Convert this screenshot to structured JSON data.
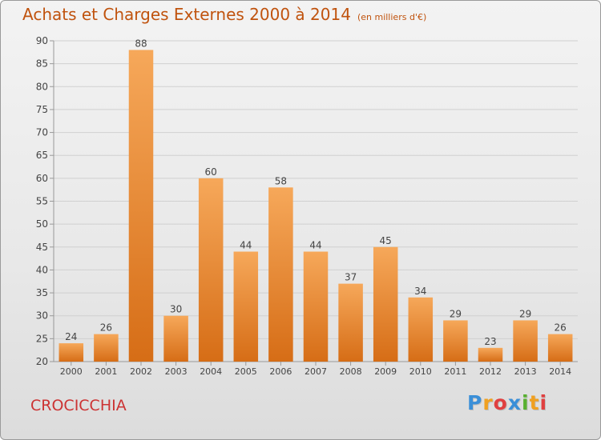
{
  "chart_data": {
    "type": "bar",
    "title": "Achats et Charges Externes 2000 à 2014",
    "subtitle": "(en milliers d'€)",
    "categories": [
      "2000",
      "2001",
      "2002",
      "2003",
      "2004",
      "2005",
      "2006",
      "2007",
      "2008",
      "2009",
      "2010",
      "2011",
      "2012",
      "2013",
      "2014"
    ],
    "values": [
      24,
      26,
      88,
      30,
      60,
      44,
      58,
      44,
      37,
      45,
      34,
      29,
      23,
      29,
      26
    ],
    "ylim": [
      20,
      90
    ],
    "yticks": [
      20,
      25,
      30,
      35,
      40,
      45,
      50,
      55,
      60,
      65,
      70,
      75,
      80,
      85,
      90
    ],
    "grid": true,
    "bar_color": "#e87f24",
    "xlabel": "",
    "ylabel": ""
  },
  "footer": {
    "commune": "CROCICCHIA",
    "brand": [
      "P",
      "r",
      "o",
      "x",
      "i",
      "t",
      "i"
    ],
    "brand_colors": [
      "#3a8fd8",
      "#f0a020",
      "#e04040",
      "#3a8fd8",
      "#58b030",
      "#f0a020",
      "#e04040"
    ]
  },
  "colors": {
    "title": "#c0530e",
    "commune": "#cc3333"
  }
}
